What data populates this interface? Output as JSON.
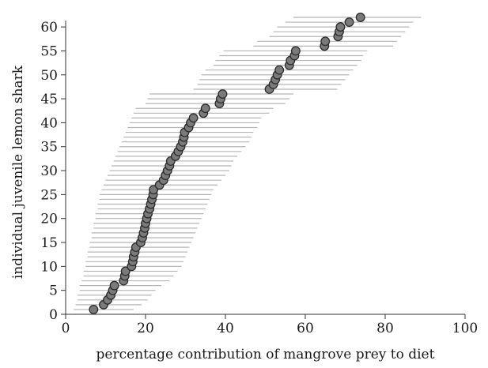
{
  "chart_data": {
    "type": "scatter",
    "title": "",
    "xlabel": "percentage contribution of mangrove prey to diet",
    "ylabel": "individual juvenile lemon shark",
    "xlim": [
      0,
      100
    ],
    "ylim": [
      0,
      62
    ],
    "xticks": [
      0,
      20,
      40,
      60,
      80,
      100
    ],
    "yticks": [
      0,
      5,
      10,
      15,
      20,
      25,
      30,
      35,
      40,
      45,
      50,
      55,
      60
    ],
    "grid": false,
    "legend": "none",
    "colors": {
      "point_fill": "#7a7a7a",
      "point_edge": "#2b2b2b",
      "range": "#b5b5b5"
    },
    "series": [
      {
        "points": [
          {
            "y": 1,
            "x": 7.0,
            "lo": 2.0,
            "hi": 17.0
          },
          {
            "y": 2,
            "x": 9.5,
            "lo": 2.5,
            "hi": 19.0
          },
          {
            "y": 3,
            "x": 10.5,
            "lo": 3.0,
            "hi": 20.5
          },
          {
            "y": 4,
            "x": 11.3,
            "lo": 3.0,
            "hi": 21.5
          },
          {
            "y": 5,
            "x": 11.8,
            "lo": 3.5,
            "hi": 22.5
          },
          {
            "y": 6,
            "x": 12.2,
            "lo": 3.5,
            "hi": 24.0
          },
          {
            "y": 7,
            "x": 14.5,
            "lo": 4.0,
            "hi": 26.0
          },
          {
            "y": 8,
            "x": 14.8,
            "lo": 4.5,
            "hi": 27.0
          },
          {
            "y": 9,
            "x": 15.0,
            "lo": 4.5,
            "hi": 28.0
          },
          {
            "y": 10,
            "x": 16.5,
            "lo": 5.0,
            "hi": 29.0
          },
          {
            "y": 11,
            "x": 16.8,
            "lo": 5.0,
            "hi": 29.5
          },
          {
            "y": 12,
            "x": 17.0,
            "lo": 5.5,
            "hi": 30.0
          },
          {
            "y": 13,
            "x": 17.3,
            "lo": 5.5,
            "hi": 30.5
          },
          {
            "y": 14,
            "x": 17.6,
            "lo": 6.0,
            "hi": 31.0
          },
          {
            "y": 15,
            "x": 18.8,
            "lo": 6.0,
            "hi": 31.5
          },
          {
            "y": 16,
            "x": 19.2,
            "lo": 6.5,
            "hi": 32.0
          },
          {
            "y": 17,
            "x": 19.5,
            "lo": 6.5,
            "hi": 32.5
          },
          {
            "y": 18,
            "x": 19.8,
            "lo": 7.0,
            "hi": 33.0
          },
          {
            "y": 19,
            "x": 20.0,
            "lo": 7.0,
            "hi": 33.5
          },
          {
            "y": 20,
            "x": 20.3,
            "lo": 7.5,
            "hi": 34.0
          },
          {
            "y": 21,
            "x": 20.6,
            "lo": 7.5,
            "hi": 34.5
          },
          {
            "y": 22,
            "x": 21.0,
            "lo": 8.0,
            "hi": 35.0
          },
          {
            "y": 23,
            "x": 21.3,
            "lo": 8.0,
            "hi": 35.5
          },
          {
            "y": 24,
            "x": 21.6,
            "lo": 8.5,
            "hi": 36.0
          },
          {
            "y": 25,
            "x": 21.9,
            "lo": 8.5,
            "hi": 36.5
          },
          {
            "y": 26,
            "x": 22.0,
            "lo": 9.0,
            "hi": 37.0
          },
          {
            "y": 27,
            "x": 23.5,
            "lo": 9.5,
            "hi": 38.0
          },
          {
            "y": 28,
            "x": 24.5,
            "lo": 10.0,
            "hi": 39.0
          },
          {
            "y": 29,
            "x": 25.0,
            "lo": 10.5,
            "hi": 40.0
          },
          {
            "y": 30,
            "x": 25.5,
            "lo": 11.0,
            "hi": 41.0
          },
          {
            "y": 31,
            "x": 26.0,
            "lo": 11.5,
            "hi": 41.5
          },
          {
            "y": 32,
            "x": 26.3,
            "lo": 12.0,
            "hi": 42.0
          },
          {
            "y": 33,
            "x": 27.5,
            "lo": 12.5,
            "hi": 43.0
          },
          {
            "y": 34,
            "x": 28.2,
            "lo": 13.0,
            "hi": 44.0
          },
          {
            "y": 35,
            "x": 28.8,
            "lo": 13.5,
            "hi": 45.0
          },
          {
            "y": 36,
            "x": 29.3,
            "lo": 14.0,
            "hi": 46.0
          },
          {
            "y": 37,
            "x": 29.6,
            "lo": 14.5,
            "hi": 46.5
          },
          {
            "y": 38,
            "x": 29.8,
            "lo": 15.0,
            "hi": 47.0
          },
          {
            "y": 39,
            "x": 30.8,
            "lo": 15.5,
            "hi": 48.0
          },
          {
            "y": 40,
            "x": 31.3,
            "lo": 16.0,
            "hi": 48.5
          },
          {
            "y": 41,
            "x": 32.0,
            "lo": 16.5,
            "hi": 49.0
          },
          {
            "y": 42,
            "x": 34.5,
            "lo": 17.0,
            "hi": 51.0
          },
          {
            "y": 43,
            "x": 35.0,
            "lo": 17.5,
            "hi": 52.0
          },
          {
            "y": 44,
            "x": 38.5,
            "lo": 20.0,
            "hi": 55.0
          },
          {
            "y": 45,
            "x": 38.8,
            "lo": 20.5,
            "hi": 56.0
          },
          {
            "y": 46,
            "x": 39.3,
            "lo": 21.0,
            "hi": 57.0
          },
          {
            "y": 47,
            "x": 51.0,
            "lo": 32.0,
            "hi": 68.0
          },
          {
            "y": 48,
            "x": 52.0,
            "lo": 33.0,
            "hi": 69.0
          },
          {
            "y": 49,
            "x": 52.5,
            "lo": 33.5,
            "hi": 70.0
          },
          {
            "y": 50,
            "x": 53.0,
            "lo": 34.0,
            "hi": 71.0
          },
          {
            "y": 51,
            "x": 53.5,
            "lo": 35.0,
            "hi": 72.0
          },
          {
            "y": 52,
            "x": 56.0,
            "lo": 37.0,
            "hi": 73.0
          },
          {
            "y": 53,
            "x": 56.3,
            "lo": 37.5,
            "hi": 74.0
          },
          {
            "y": 54,
            "x": 57.3,
            "lo": 38.5,
            "hi": 74.5
          },
          {
            "y": 55,
            "x": 57.6,
            "lo": 39.5,
            "hi": 75.5
          },
          {
            "y": 56,
            "x": 64.8,
            "lo": 47.0,
            "hi": 82.0
          },
          {
            "y": 57,
            "x": 65.0,
            "lo": 48.0,
            "hi": 83.0
          },
          {
            "y": 58,
            "x": 68.2,
            "lo": 51.0,
            "hi": 84.0
          },
          {
            "y": 59,
            "x": 68.5,
            "lo": 52.0,
            "hi": 85.0
          },
          {
            "y": 60,
            "x": 68.8,
            "lo": 53.0,
            "hi": 86.0
          },
          {
            "y": 61,
            "x": 71.0,
            "lo": 55.0,
            "hi": 87.0
          },
          {
            "y": 62,
            "x": 73.8,
            "lo": 57.0,
            "hi": 89.0
          }
        ]
      }
    ]
  }
}
